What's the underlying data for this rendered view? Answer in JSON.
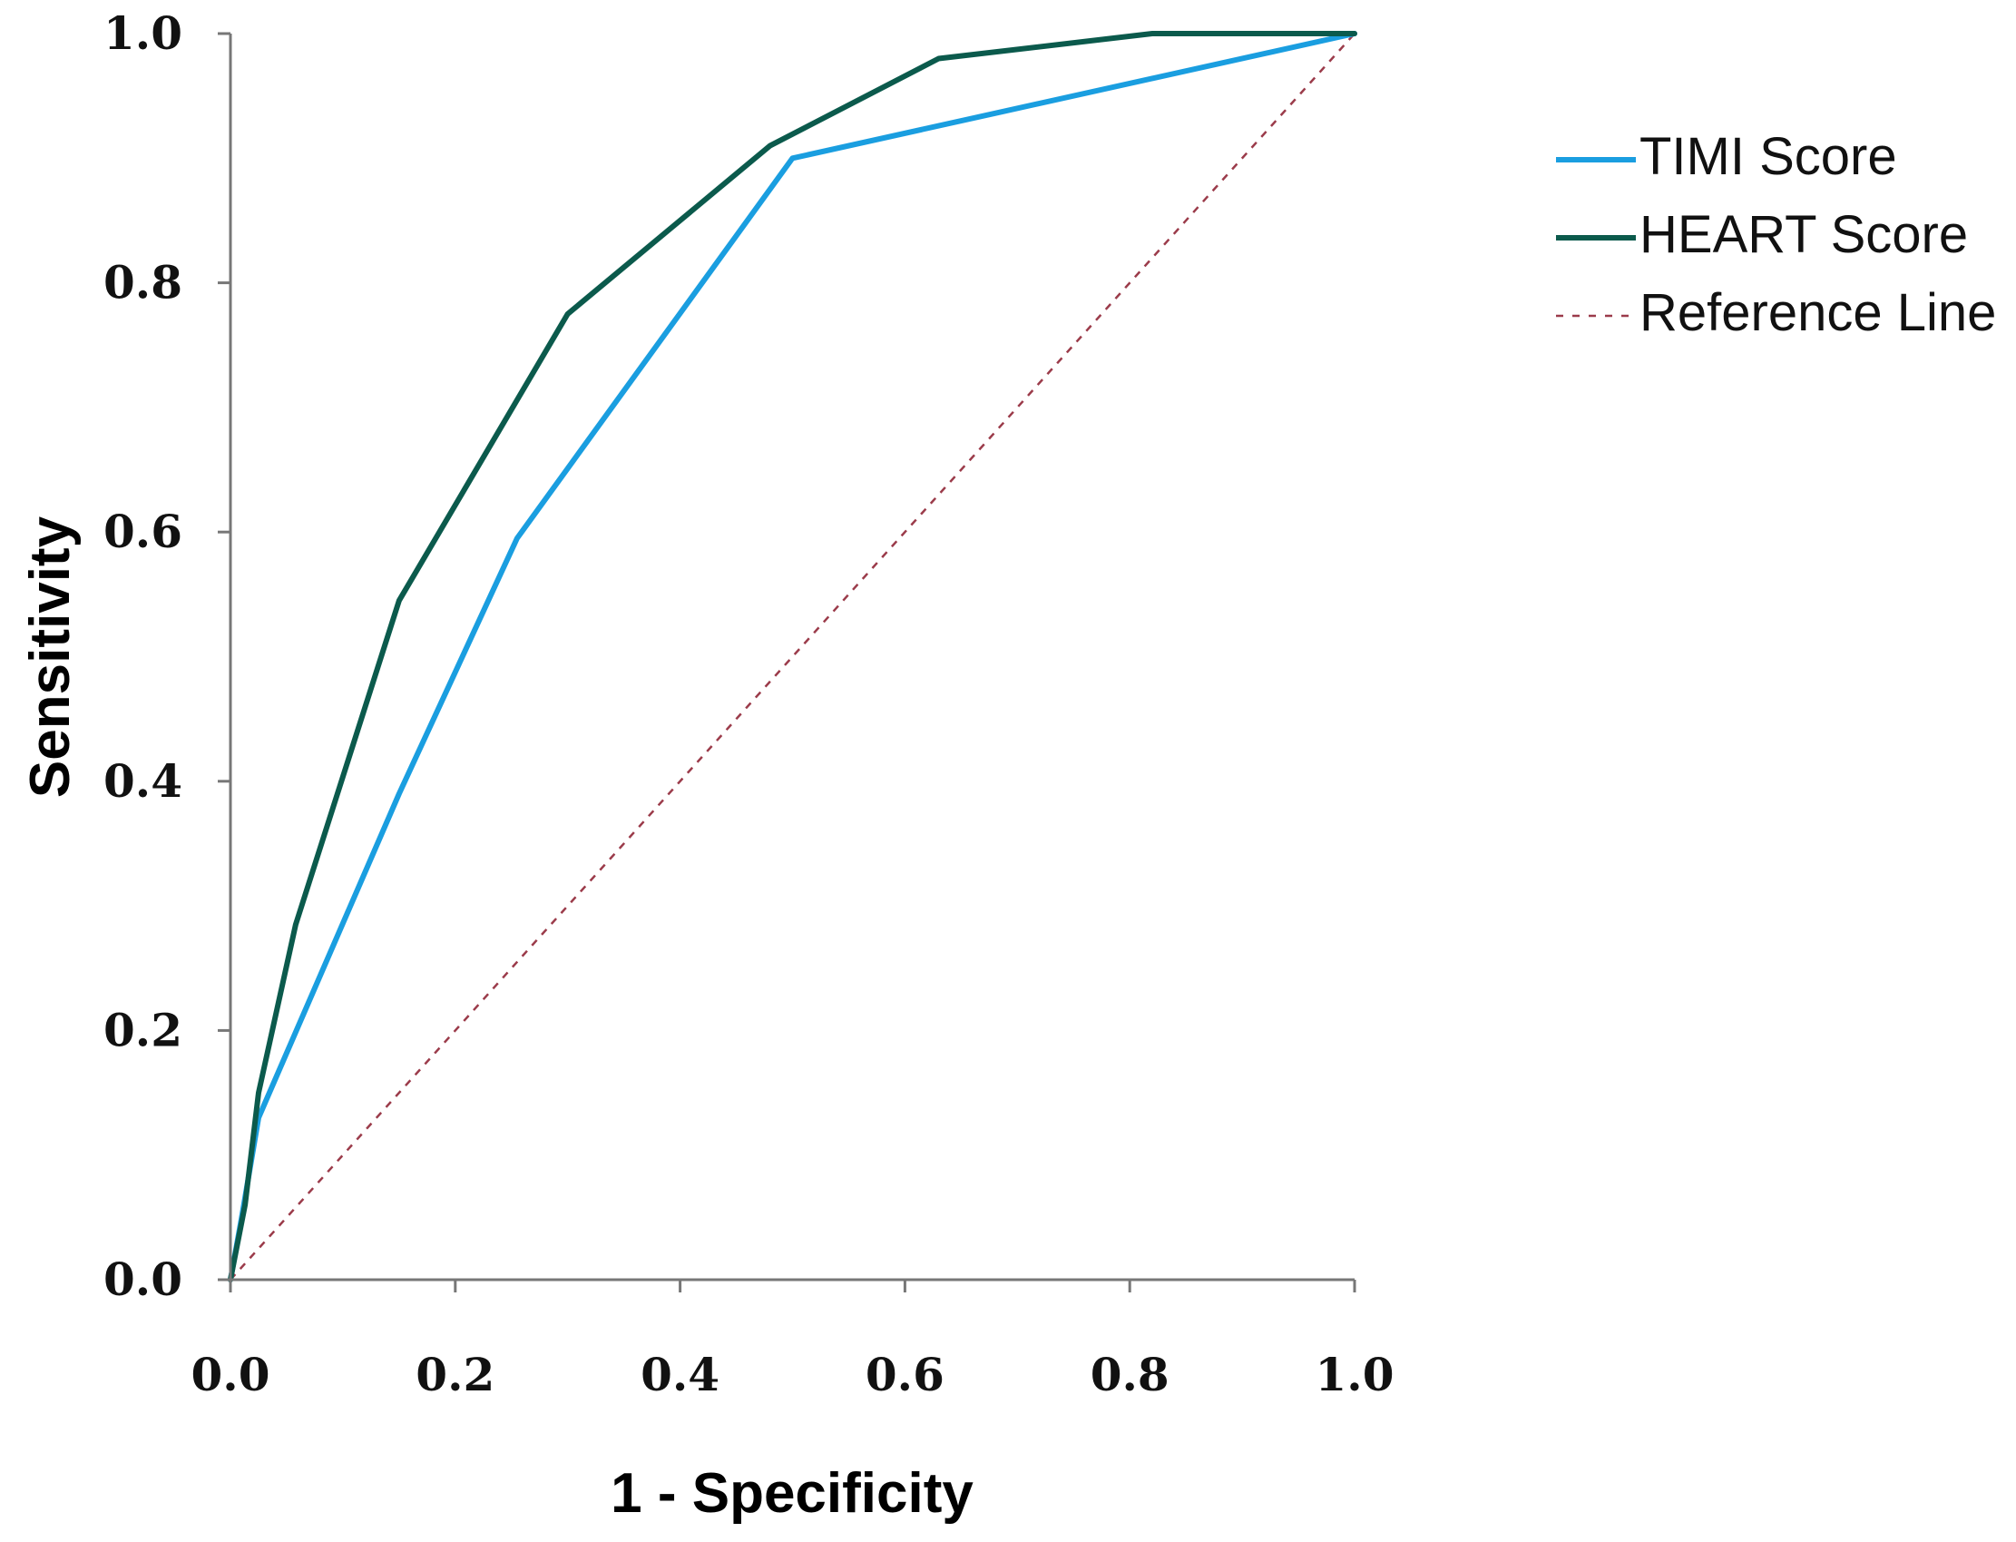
{
  "chart_data": {
    "type": "line",
    "title": "",
    "xlabel": "1 - Specificity",
    "ylabel": "Sensitivity",
    "xlim": [
      0,
      1
    ],
    "ylim": [
      0,
      1
    ],
    "x_ticks": [
      "0.0",
      "0.2",
      "0.4",
      "0.6",
      "0.8",
      "1.0"
    ],
    "y_ticks": [
      "0.0",
      "0.2",
      "0.4",
      "0.6",
      "0.8",
      "1.0"
    ],
    "grid": false,
    "legend_position": "right",
    "series": [
      {
        "name": "TIMI Score",
        "color": "#1a9ee0",
        "style": "solid",
        "points": [
          [
            0.0,
            0.0
          ],
          [
            0.01,
            0.05
          ],
          [
            0.025,
            0.13
          ],
          [
            0.15,
            0.39
          ],
          [
            0.255,
            0.595
          ],
          [
            0.5,
            0.9
          ],
          [
            1.0,
            1.0
          ]
        ]
      },
      {
        "name": "HEART Score",
        "color": "#0b5a4c",
        "style": "solid",
        "points": [
          [
            0.0,
            0.0
          ],
          [
            0.013,
            0.06
          ],
          [
            0.025,
            0.15
          ],
          [
            0.058,
            0.285
          ],
          [
            0.15,
            0.545
          ],
          [
            0.3,
            0.775
          ],
          [
            0.48,
            0.91
          ],
          [
            0.63,
            0.98
          ],
          [
            0.82,
            1.0
          ],
          [
            1.0,
            1.0
          ]
        ]
      },
      {
        "name": "Reference Line",
        "color": "#9b3b4a",
        "style": "dashed",
        "points": [
          [
            0.0,
            0.0
          ],
          [
            1.0,
            1.0
          ]
        ]
      }
    ]
  }
}
